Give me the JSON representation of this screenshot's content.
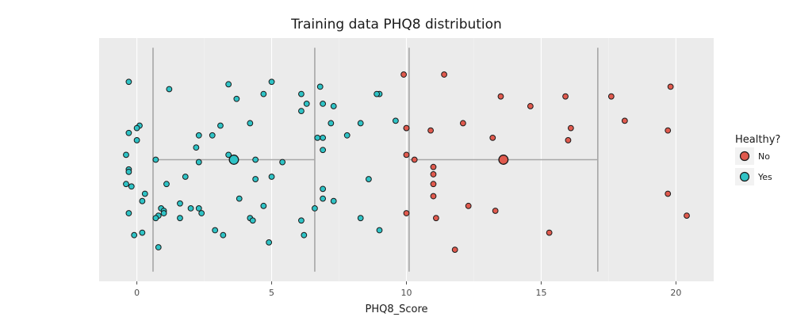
{
  "chart_data": {
    "type": "scatter",
    "title": "Training data PHQ8 distribution",
    "xlabel": "PHQ8_Score",
    "ylabel": "",
    "xlim": [
      -1.4,
      21.4
    ],
    "xticks": [
      0,
      5,
      10,
      15,
      20
    ],
    "grid": true,
    "legend": {
      "title": "Healthy?",
      "placement": "right",
      "entries": [
        {
          "label": "No",
          "color": "#e05a4e"
        },
        {
          "label": "Yes",
          "color": "#2fc3c6"
        }
      ]
    },
    "series": [
      {
        "name": "No",
        "color": "#e05a4e",
        "points": [
          [
            9.9,
            0.85
          ],
          [
            11.4,
            0.85
          ],
          [
            19.8,
            0.8
          ],
          [
            17.6,
            0.76
          ],
          [
            13.5,
            0.76
          ],
          [
            15.9,
            0.76
          ],
          [
            14.6,
            0.72
          ],
          [
            18.1,
            0.66
          ],
          [
            12.1,
            0.65
          ],
          [
            10.0,
            0.63
          ],
          [
            10.0,
            0.63
          ],
          [
            10.9,
            0.62
          ],
          [
            16.1,
            0.63
          ],
          [
            19.7,
            0.62
          ],
          [
            13.2,
            0.59
          ],
          [
            16.0,
            0.58
          ],
          [
            10.0,
            0.52
          ],
          [
            10.3,
            0.5
          ],
          [
            11.0,
            0.47
          ],
          [
            11.0,
            0.44
          ],
          [
            11.0,
            0.4
          ],
          [
            11.0,
            0.35
          ],
          [
            19.7,
            0.36
          ],
          [
            12.3,
            0.31
          ],
          [
            10.0,
            0.28
          ],
          [
            13.3,
            0.29
          ],
          [
            11.1,
            0.26
          ],
          [
            20.4,
            0.27
          ],
          [
            15.3,
            0.2
          ],
          [
            11.8,
            0.13
          ]
        ],
        "summary": {
          "mean": 13.6,
          "lower": 10.1,
          "upper": 17.1
        }
      },
      {
        "name": "Yes",
        "color": "#2fc3c6",
        "points": [
          [
            -0.3,
            0.82
          ],
          [
            1.2,
            0.79
          ],
          [
            3.4,
            0.81
          ],
          [
            5.0,
            0.82
          ],
          [
            6.8,
            0.8
          ],
          [
            3.7,
            0.75
          ],
          [
            4.7,
            0.77
          ],
          [
            6.1,
            0.77
          ],
          [
            6.3,
            0.73
          ],
          [
            6.9,
            0.73
          ],
          [
            7.3,
            0.72
          ],
          [
            9.0,
            0.77
          ],
          [
            8.9,
            0.77
          ],
          [
            6.1,
            0.7
          ],
          [
            4.2,
            0.65
          ],
          [
            3.1,
            0.64
          ],
          [
            7.2,
            0.65
          ],
          [
            8.3,
            0.65
          ],
          [
            9.6,
            0.66
          ],
          [
            0.1,
            0.64
          ],
          [
            0.0,
            0.63
          ],
          [
            -0.3,
            0.61
          ],
          [
            2.3,
            0.6
          ],
          [
            2.8,
            0.6
          ],
          [
            6.7,
            0.59
          ],
          [
            6.9,
            0.59
          ],
          [
            7.8,
            0.6
          ],
          [
            0.0,
            0.58
          ],
          [
            2.2,
            0.55
          ],
          [
            6.9,
            0.54
          ],
          [
            -0.4,
            0.52
          ],
          [
            3.4,
            0.52
          ],
          [
            0.7,
            0.5
          ],
          [
            2.3,
            0.49
          ],
          [
            4.4,
            0.5
          ],
          [
            5.4,
            0.49
          ],
          [
            -0.3,
            0.46
          ],
          [
            -0.3,
            0.45
          ],
          [
            1.8,
            0.43
          ],
          [
            4.4,
            0.42
          ],
          [
            5.0,
            0.43
          ],
          [
            8.6,
            0.42
          ],
          [
            -0.4,
            0.4
          ],
          [
            -0.2,
            0.39
          ],
          [
            1.1,
            0.4
          ],
          [
            6.9,
            0.38
          ],
          [
            0.3,
            0.36
          ],
          [
            3.8,
            0.34
          ],
          [
            6.9,
            0.34
          ],
          [
            7.3,
            0.33
          ],
          [
            0.2,
            0.33
          ],
          [
            1.6,
            0.32
          ],
          [
            4.7,
            0.31
          ],
          [
            0.9,
            0.3
          ],
          [
            1.0,
            0.29
          ],
          [
            2.0,
            0.3
          ],
          [
            2.3,
            0.3
          ],
          [
            6.6,
            0.3
          ],
          [
            -0.3,
            0.28
          ],
          [
            0.8,
            0.27
          ],
          [
            0.7,
            0.26
          ],
          [
            1.0,
            0.28
          ],
          [
            1.6,
            0.26
          ],
          [
            2.4,
            0.28
          ],
          [
            4.2,
            0.26
          ],
          [
            4.3,
            0.25
          ],
          [
            6.1,
            0.25
          ],
          [
            8.3,
            0.26
          ],
          [
            2.9,
            0.21
          ],
          [
            0.2,
            0.2
          ],
          [
            -0.1,
            0.19
          ],
          [
            3.2,
            0.19
          ],
          [
            6.2,
            0.19
          ],
          [
            9.0,
            0.21
          ],
          [
            4.9,
            0.16
          ],
          [
            0.8,
            0.14
          ]
        ],
        "summary": {
          "mean": 3.6,
          "lower": 0.6,
          "upper": 6.6
        }
      }
    ]
  }
}
